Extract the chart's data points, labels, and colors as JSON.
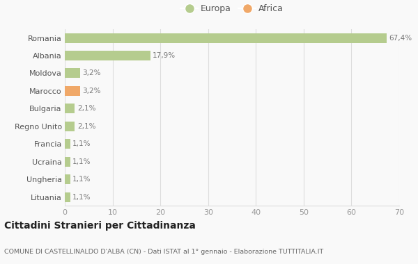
{
  "categories": [
    "Romania",
    "Albania",
    "Moldova",
    "Marocco",
    "Bulgaria",
    "Regno Unito",
    "Francia",
    "Ucraina",
    "Ungheria",
    "Lituania"
  ],
  "values": [
    67.4,
    17.9,
    3.2,
    3.2,
    2.1,
    2.1,
    1.1,
    1.1,
    1.1,
    1.1
  ],
  "labels": [
    "67,4%",
    "17,9%",
    "3,2%",
    "3,2%",
    "2,1%",
    "2,1%",
    "1,1%",
    "1,1%",
    "1,1%",
    "1,1%"
  ],
  "continents": [
    "Europa",
    "Europa",
    "Europa",
    "Africa",
    "Europa",
    "Europa",
    "Europa",
    "Europa",
    "Europa",
    "Europa"
  ],
  "color_europa": "#b5cc8e",
  "color_africa": "#f0a868",
  "background_color": "#f9f9f9",
  "grid_color": "#dddddd",
  "title": "Cittadini Stranieri per Cittadinanza",
  "subtitle": "COMUNE DI CASTELLINALDO D'ALBA (CN) - Dati ISTAT al 1° gennaio - Elaborazione TUTTITALIA.IT",
  "xlim": [
    0,
    70
  ],
  "xticks": [
    0,
    10,
    20,
    30,
    40,
    50,
    60,
    70
  ],
  "legend_europa": "Europa",
  "legend_africa": "Africa"
}
